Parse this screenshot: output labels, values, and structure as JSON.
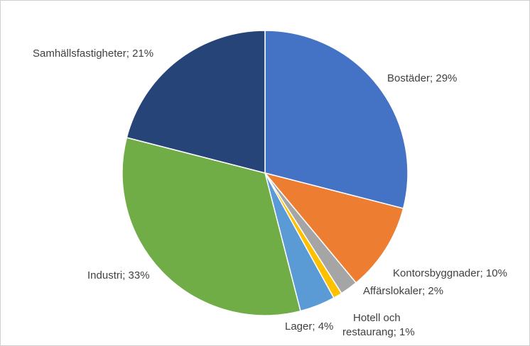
{
  "chart_data": {
    "type": "pie",
    "title": "",
    "legend": "none",
    "slices": [
      {
        "name": "Bostäder",
        "value": 29,
        "label": "Bostäder; 29%",
        "color": "#4472C4"
      },
      {
        "name": "Kontorsbyggnader",
        "value": 10,
        "label": "Kontorsbyggnader; 10%",
        "color": "#ED7D31"
      },
      {
        "name": "Affärslokaler",
        "value": 2,
        "label": "Affärslokaler; 2%",
        "color": "#A5A5A5"
      },
      {
        "name": "Hotell och restaurang",
        "value": 1,
        "label_lines": [
          "Hotell och",
          "restaurang; 1%"
        ],
        "color": "#FFC000"
      },
      {
        "name": "Lager",
        "value": 4,
        "label": "Lager; 4%",
        "color": "#5B9BD5"
      },
      {
        "name": "Industri",
        "value": 33,
        "label": "Industri; 33%",
        "color": "#70AD47"
      },
      {
        "name": "Samhällsfastigheter",
        "value": 21,
        "label": "Samhällsfastigheter; 21%",
        "color": "#264478"
      }
    ]
  }
}
